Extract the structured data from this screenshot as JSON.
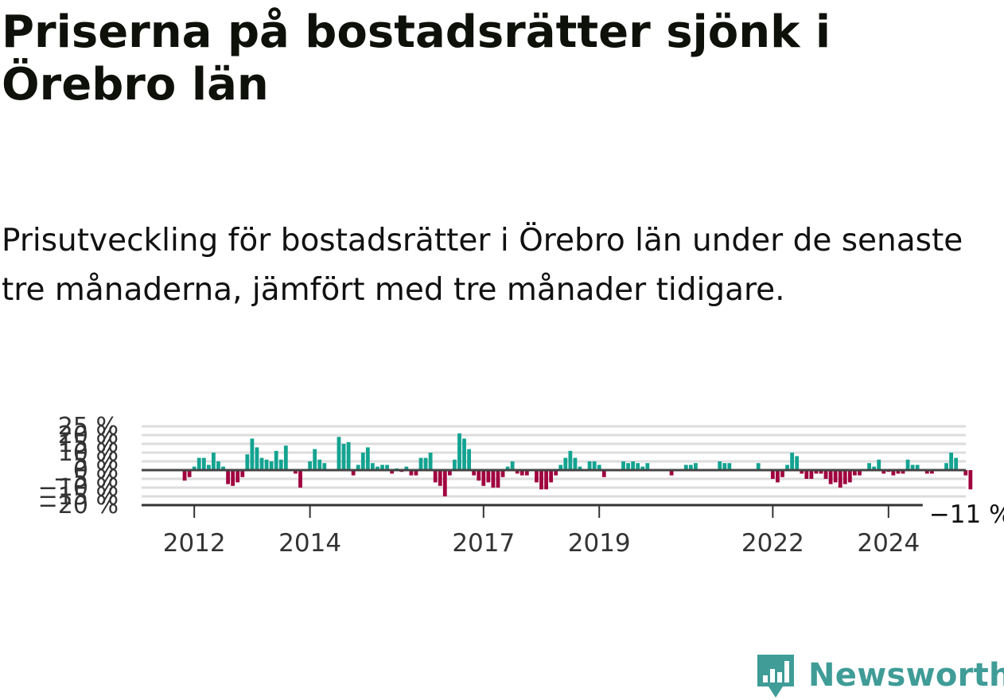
{
  "header": {
    "title": "Priserna på bostadsrätter sjönk i Örebro län",
    "subtitle": "Prisutveckling för bostadsrätter i Örebro län under de senaste tre månaderna, jämfört med tre månader tidigare."
  },
  "brand": {
    "name": "Newsworthy",
    "logo_icon": "newsworthy-chat-bars-icon"
  },
  "chart_data": {
    "type": "bar",
    "start": "2011-10",
    "x_tick_labels": [
      "2012",
      "2014",
      "2017",
      "2019",
      "2022",
      "2024"
    ],
    "x_tick_positions": [
      "2012-01",
      "2014-01",
      "2017-01",
      "2019-01",
      "2022-01",
      "2024-01"
    ],
    "y_tick_labels": [
      "25 %",
      "20 %",
      "15 %",
      "10 %",
      "5 %",
      "0 %",
      "−5 %",
      "−10 %",
      "−15 %",
      "−20 %"
    ],
    "y_ticks": [
      25,
      20,
      15,
      10,
      5,
      0,
      -5,
      -10,
      -15,
      -20
    ],
    "ylim": [
      -20,
      25
    ],
    "grid": true,
    "last_value_label": "−11 %",
    "colors": {
      "positive": "#13a391",
      "negative": "#a0023e",
      "baseline": "#444444",
      "grid": "#dddddd"
    },
    "values": [
      0,
      -6,
      -4,
      2,
      7,
      7,
      3,
      10,
      5,
      2,
      -8,
      -9,
      -7,
      -4,
      9,
      18,
      13,
      7,
      6,
      5,
      11,
      6,
      14,
      0,
      -2,
      -10,
      0,
      5,
      12,
      6,
      4,
      0,
      0,
      19,
      15,
      16,
      -3,
      3,
      10,
      13,
      4,
      2,
      3,
      3,
      -2,
      1,
      -1,
      2,
      -3,
      -3,
      7,
      7,
      10,
      -7,
      -9,
      -15,
      -3,
      6,
      21,
      18,
      12,
      -3,
      -6,
      -9,
      -7,
      -10,
      -10,
      -4,
      2,
      5,
      -2,
      -3,
      -3,
      0,
      -7,
      -11,
      -11,
      -7,
      -3,
      3,
      7,
      11,
      7,
      2,
      0,
      5,
      5,
      3,
      -4,
      0,
      0,
      0,
      5,
      4,
      5,
      4,
      2,
      4,
      0,
      0,
      0,
      0,
      -3,
      0,
      0,
      3,
      3,
      4,
      0,
      0,
      0,
      0,
      5,
      4,
      4,
      0,
      0,
      0,
      0,
      0,
      4,
      0,
      0,
      -5,
      -7,
      -4,
      3,
      10,
      8,
      -2,
      -5,
      -5,
      -2,
      -2,
      -5,
      -8,
      -7,
      -10,
      -8,
      -7,
      -3,
      -3,
      0,
      4,
      2,
      6,
      -2,
      -1,
      -3,
      -2,
      -2,
      6,
      3,
      3,
      0,
      -2,
      -2,
      0,
      0,
      4,
      10,
      7,
      0,
      -3,
      -11
    ]
  }
}
